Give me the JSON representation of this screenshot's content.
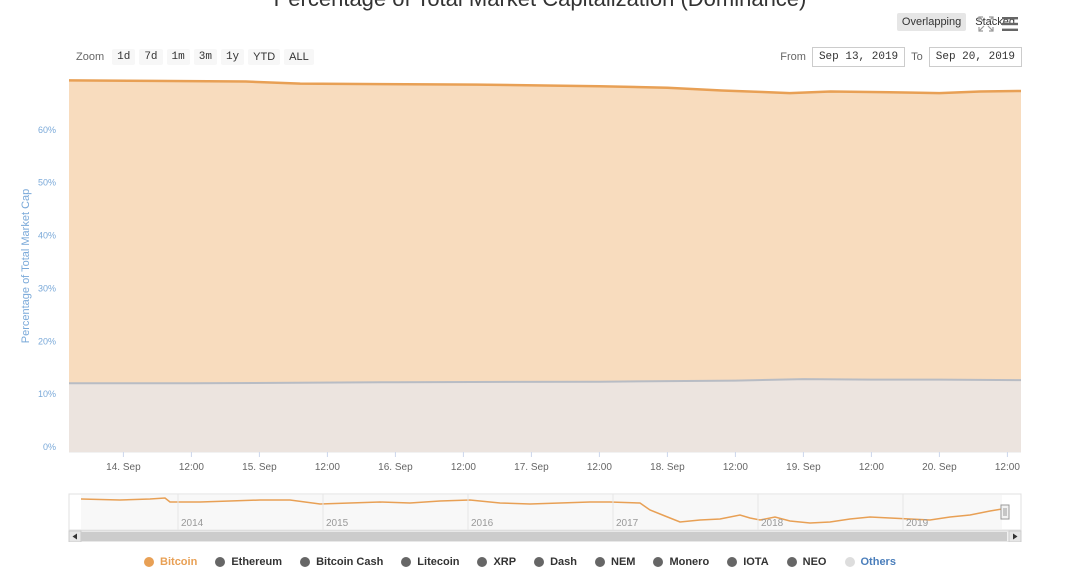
{
  "title": "Percentage of Total Market Capitalization (Dominance)",
  "mode": {
    "overlapping": "Overlapping",
    "stacked": "Stacked",
    "active": "overlapping"
  },
  "zoom": {
    "label": "Zoom",
    "buttons": [
      "1d",
      "7d",
      "1m",
      "3m",
      "1y",
      "YTD",
      "ALL"
    ]
  },
  "range": {
    "from_label": "From",
    "from_value": "Sep 13, 2019",
    "to_label": "To",
    "to_value": "Sep 20, 2019"
  },
  "navigator": {
    "year_labels": [
      "2014",
      "2015",
      "2016",
      "2017",
      "2018",
      "2019"
    ]
  },
  "colors": {
    "bitcoin": "#e8a055",
    "bitcoin_fill": "#f8dcbe",
    "ethereum_fill": "#ece4df",
    "ethereum_line": "#b8bcc4",
    "axis_text": "#7aa9d9",
    "grid": "#e6e6e6"
  },
  "chart_data": {
    "type": "area",
    "title": "Percentage of Total Market Capitalization (Dominance)",
    "ylabel": "Percentage of Total Market Cap",
    "ylim": [
      0,
      70
    ],
    "y_ticks": [
      "0%",
      "10%",
      "20%",
      "30%",
      "40%",
      "50%",
      "60%"
    ],
    "y_tick_values": [
      0,
      10,
      20,
      30,
      40,
      50,
      60
    ],
    "x_tick_labels": [
      "14. Sep",
      "12:00",
      "15. Sep",
      "12:00",
      "16. Sep",
      "12:00",
      "17. Sep",
      "12:00",
      "18. Sep",
      "12:00",
      "19. Sep",
      "12:00",
      "20. Sep",
      "12:00"
    ],
    "x_tick_values": [
      1,
      1.5,
      2,
      2.5,
      3,
      3.5,
      4,
      4.5,
      5,
      5.5,
      6,
      6.5,
      7,
      7.5
    ],
    "x_range": [
      0.6,
      7.6
    ],
    "legend_position": "bottom",
    "series": [
      {
        "name": "Bitcoin",
        "color": "#e8a055",
        "x": [
          0.6,
          1.2,
          1.9,
          2.3,
          2.9,
          3.6,
          4.5,
          5.0,
          5.4,
          5.7,
          5.9,
          6.2,
          6.8,
          7.0,
          7.3,
          7.6
        ],
        "values": [
          70.3,
          70.2,
          70.1,
          69.7,
          69.6,
          69.5,
          69.2,
          68.9,
          68.4,
          68.1,
          67.9,
          68.2,
          68.0,
          67.9,
          68.2,
          68.3
        ]
      },
      {
        "name": "Ethereum",
        "color": "#666666",
        "x": [
          0.6,
          1.5,
          3.0,
          4.5,
          5.5,
          6.0,
          6.5,
          7.0,
          7.6
        ],
        "values": [
          13.0,
          13.0,
          13.2,
          13.3,
          13.5,
          13.8,
          13.7,
          13.7,
          13.6
        ]
      },
      {
        "name": "Bitcoin Cash",
        "color": "#666666"
      },
      {
        "name": "Litecoin",
        "color": "#666666"
      },
      {
        "name": "XRP",
        "color": "#666666"
      },
      {
        "name": "Dash",
        "color": "#666666"
      },
      {
        "name": "NEM",
        "color": "#666666"
      },
      {
        "name": "Monero",
        "color": "#666666"
      },
      {
        "name": "IOTA",
        "color": "#666666"
      },
      {
        "name": "NEO",
        "color": "#666666"
      },
      {
        "name": "Others",
        "color": "#dddddd"
      }
    ]
  }
}
